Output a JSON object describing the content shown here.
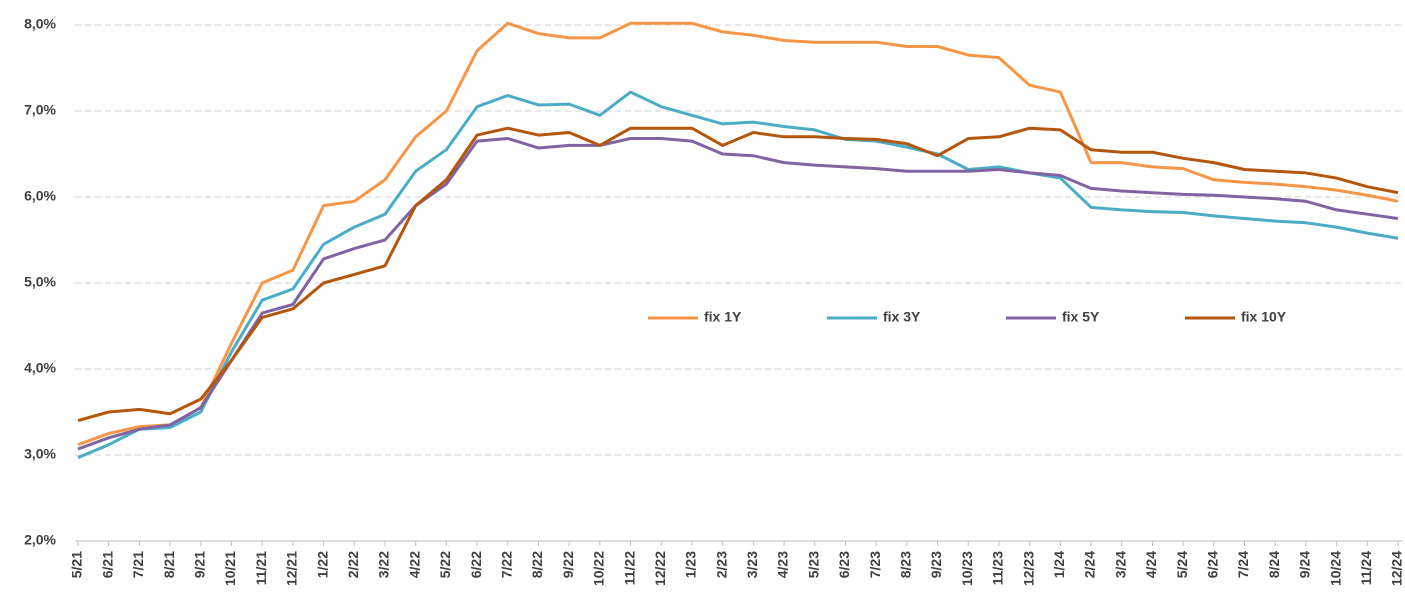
{
  "chart_data": {
    "type": "line",
    "categories": [
      "5/21",
      "6/21",
      "7/21",
      "8/21",
      "9/21",
      "10/21",
      "11/21",
      "12/21",
      "1/22",
      "2/22",
      "3/22",
      "4/22",
      "5/22",
      "6/22",
      "7/22",
      "8/22",
      "9/22",
      "10/22",
      "11/22",
      "12/22",
      "1/23",
      "2/23",
      "3/23",
      "4/23",
      "5/23",
      "6/23",
      "7/23",
      "8/23",
      "9/23",
      "10/23",
      "11/23",
      "12/23",
      "1/24",
      "2/24",
      "3/24",
      "4/24",
      "5/24",
      "6/24",
      "7/24",
      "8/24",
      "9/24",
      "10/24",
      "11/24",
      "12/24"
    ],
    "series": [
      {
        "name": "fix 1Y",
        "color": "#f79646",
        "values": [
          3.12,
          3.25,
          3.33,
          3.35,
          3.55,
          4.3,
          5.0,
          5.15,
          5.9,
          5.95,
          6.2,
          6.7,
          7.0,
          7.7,
          8.02,
          7.9,
          7.85,
          7.85,
          8.02,
          8.02,
          8.02,
          7.92,
          7.88,
          7.82,
          7.8,
          7.8,
          7.8,
          7.75,
          7.75,
          7.65,
          7.62,
          7.3,
          7.22,
          6.4,
          6.4,
          6.35,
          6.33,
          6.2,
          6.17,
          6.15,
          6.12,
          6.08,
          6.02,
          5.95
        ]
      },
      {
        "name": "fix 3Y",
        "color": "#4bacc6",
        "values": [
          2.97,
          3.12,
          3.3,
          3.32,
          3.5,
          4.2,
          4.8,
          4.93,
          5.45,
          5.65,
          5.8,
          6.3,
          6.55,
          7.05,
          7.18,
          7.07,
          7.08,
          6.95,
          7.22,
          7.05,
          6.95,
          6.85,
          6.87,
          6.82,
          6.78,
          6.67,
          6.65,
          6.58,
          6.5,
          6.32,
          6.35,
          6.28,
          6.22,
          5.88,
          5.85,
          5.83,
          5.82,
          5.78,
          5.75,
          5.72,
          5.7,
          5.65,
          5.58,
          5.52
        ]
      },
      {
        "name": "fix 5Y",
        "color": "#8064a2",
        "values": [
          3.07,
          3.2,
          3.3,
          3.35,
          3.55,
          4.1,
          4.65,
          4.75,
          5.28,
          5.4,
          5.5,
          5.9,
          6.15,
          6.65,
          6.68,
          6.57,
          6.6,
          6.6,
          6.68,
          6.68,
          6.65,
          6.5,
          6.48,
          6.4,
          6.37,
          6.35,
          6.33,
          6.3,
          6.3,
          6.3,
          6.32,
          6.28,
          6.25,
          6.1,
          6.07,
          6.05,
          6.03,
          6.02,
          6.0,
          5.98,
          5.95,
          5.85,
          5.8,
          5.75
        ]
      },
      {
        "name": "fix 10Y",
        "color": "#b4560c",
        "values": [
          3.4,
          3.5,
          3.53,
          3.48,
          3.65,
          4.1,
          4.6,
          4.7,
          5.0,
          5.1,
          5.2,
          5.9,
          6.2,
          6.72,
          6.8,
          6.72,
          6.75,
          6.6,
          6.8,
          6.8,
          6.8,
          6.6,
          6.75,
          6.7,
          6.7,
          6.68,
          6.67,
          6.62,
          6.48,
          6.68,
          6.7,
          6.8,
          6.78,
          6.55,
          6.52,
          6.52,
          6.45,
          6.4,
          6.32,
          6.3,
          6.28,
          6.22,
          6.12,
          6.05
        ]
      }
    ],
    "ylim": [
      2,
      8
    ],
    "yticks": [
      {
        "value": 2,
        "label": "2,0%"
      },
      {
        "value": 3,
        "label": "3,0%"
      },
      {
        "value": 4,
        "label": "4,0%"
      },
      {
        "value": 5,
        "label": "5,0%"
      },
      {
        "value": 6,
        "label": "6,0%"
      },
      {
        "value": 7,
        "label": "7,0%"
      },
      {
        "value": 8,
        "label": "8,0%"
      }
    ],
    "grid": true,
    "legend": "inside"
  }
}
